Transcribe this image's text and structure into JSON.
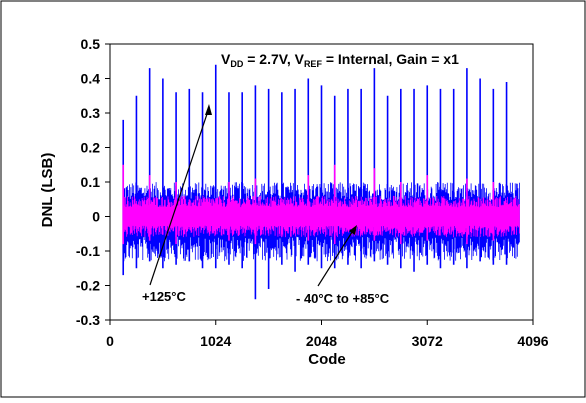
{
  "chart_data": {
    "type": "line",
    "title": "",
    "annotation": {
      "vdd_prefix": "V",
      "vdd_sub": "DD",
      "vdd_value": " = 2.7V,  ",
      "vref_prefix": "V",
      "vref_sub": "REF",
      "vref_value": " = Internal,  Gain = x1"
    },
    "xlabel": "Code",
    "ylabel": "DNL (LSB)",
    "xlim": [
      0,
      4096
    ],
    "ylim": [
      -0.3,
      0.5
    ],
    "xticks": [
      0,
      1024,
      2048,
      3072,
      4096
    ],
    "xtick_labels": [
      "0",
      "1024",
      "2048",
      "3072",
      "4096"
    ],
    "yticks": [
      -0.3,
      -0.2,
      -0.1,
      0,
      0.1,
      0.2,
      0.3,
      0.4,
      0.5
    ],
    "ytick_labels": [
      "-0.3",
      "-0.2",
      "-0.1",
      "0",
      "0.1",
      "0.2",
      "0.3",
      "0.4",
      "0.5"
    ],
    "grid": false,
    "x_start": 128,
    "x_end": 3968,
    "series": [
      {
        "name": "+125°C",
        "color": "#0000ff",
        "noise_high": 0.1,
        "noise_low": -0.13,
        "peaks_x": [
          128,
          256,
          384,
          512,
          640,
          768,
          896,
          1024,
          1152,
          1280,
          1408,
          1536,
          1664,
          1792,
          1920,
          2048,
          2176,
          2304,
          2432,
          2560,
          2688,
          2816,
          2944,
          3072,
          3200,
          3328,
          3456,
          3584,
          3712,
          3840
        ],
        "peaks_max": [
          0.28,
          0.35,
          0.43,
          0.4,
          0.36,
          0.37,
          0.36,
          0.44,
          0.36,
          0.36,
          0.38,
          0.37,
          0.36,
          0.37,
          0.4,
          0.38,
          0.35,
          0.37,
          0.37,
          0.43,
          0.35,
          0.37,
          0.37,
          0.38,
          0.37,
          0.37,
          0.43,
          0.4,
          0.37,
          0.39
        ],
        "peaks_min": [
          -0.17,
          -0.15,
          -0.13,
          -0.15,
          -0.14,
          -0.13,
          -0.15,
          -0.15,
          -0.14,
          -0.15,
          -0.24,
          -0.21,
          -0.14,
          -0.16,
          -0.14,
          -0.15,
          -0.15,
          -0.14,
          -0.15,
          -0.13,
          -0.14,
          -0.15,
          -0.16,
          -0.14,
          -0.15,
          -0.14,
          -0.15,
          -0.13,
          -0.14,
          -0.14
        ]
      },
      {
        "name": "- 40°C to +85°C",
        "color": "#ff00ff",
        "noise_high": 0.06,
        "noise_low": -0.06,
        "peaks_x": [
          128,
          384,
          640,
          1152,
          1408,
          1920,
          2176,
          2560,
          2816,
          3072,
          3456,
          3712
        ],
        "peaks_max": [
          0.15,
          0.12,
          0.1,
          0.1,
          0.11,
          0.12,
          0.15,
          0.14,
          0.1,
          0.12,
          0.11,
          0.1
        ],
        "peaks_min": [
          -0.08,
          -0.07,
          -0.08,
          -0.07,
          -0.08,
          -0.07,
          -0.08,
          -0.07,
          -0.08,
          -0.07,
          -0.08,
          -0.07
        ]
      }
    ],
    "labels": {
      "hot": "+125°C",
      "range": "- 40°C to +85°C"
    }
  }
}
